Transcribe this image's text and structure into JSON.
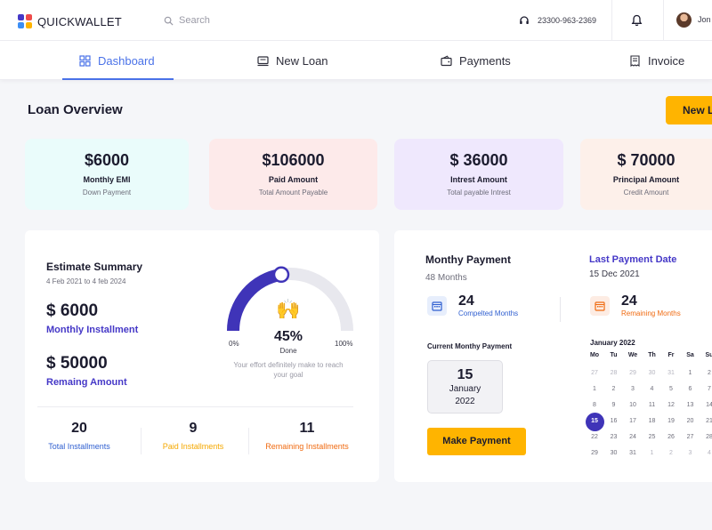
{
  "header": {
    "brand": "QUICKWALLET",
    "search_placeholder": "Search",
    "phone": "23300-963-2369",
    "user_name": "Jon"
  },
  "nav": {
    "tabs": [
      {
        "label": "Dashboard",
        "icon": "grid-icon",
        "active": true
      },
      {
        "label": "New Loan",
        "icon": "laptop-icon",
        "active": false
      },
      {
        "label": "Payments",
        "icon": "wallet-icon",
        "active": false
      },
      {
        "label": "Invoice",
        "icon": "receipt-icon",
        "active": false
      }
    ]
  },
  "main": {
    "title": "Loan Overview",
    "new_loan_button": "New Loan"
  },
  "stats": [
    {
      "value": "$6000",
      "title": "Monthly EMI",
      "sub": "Down Payment",
      "color": "#eafcfb"
    },
    {
      "value": "$106000",
      "title": "Paid Amount",
      "sub": "Total  Amount Payable",
      "color": "#fdeaea"
    },
    {
      "value": "$ 36000",
      "title": "Intrest Amount",
      "sub": "Total payable Intrest",
      "color": "#efe8fd"
    },
    {
      "value": "$ 70000",
      "title": "Principal Amount",
      "sub": "Credit Amount",
      "color": "#fdf0ea"
    }
  ],
  "estimate": {
    "title": "Estimate Summary",
    "dates": "4 Feb 2021 to 4 feb 2024",
    "installment_value": "$ 6000",
    "installment_label": "Monthly Installment",
    "remaining_value": "$ 50000",
    "remaining_label": "Remaing Amount",
    "gauge": {
      "percent": 45,
      "percent_text": "45%",
      "done_label": "Done",
      "min_label": "0%",
      "max_label": "100%",
      "emoji": "🙌",
      "note": "Your effort definitely make to reach your goal"
    },
    "installments": [
      {
        "value": "20",
        "label": "Total Installments",
        "color": "#2f5fd0"
      },
      {
        "value": "9",
        "label": "Paid Installments",
        "color": "#f5a800"
      },
      {
        "value": "11",
        "label": "Remaining Installments",
        "color": "#f06a10"
      }
    ]
  },
  "monthly": {
    "title": "Monthy Payment",
    "months": "48 Months",
    "last_payment_title": "Last Payment Date",
    "last_payment_date": "15 Dec 2021",
    "completed": {
      "value": "24",
      "label": "Compelted Months",
      "color": "#2f5fd0"
    },
    "remaining": {
      "value": "24",
      "label": "Remaining Months",
      "color": "#f06a10"
    },
    "current_title": "Current Monthy Payment",
    "current_day": "15",
    "current_month": "January",
    "current_year": "2022",
    "make_payment": "Make Payment"
  },
  "calendar": {
    "title": "January 2022",
    "headers": [
      "Mo",
      "Tu",
      "We",
      "Th",
      "Fr",
      "Sa",
      "Su"
    ],
    "weeks": [
      [
        "27",
        "28",
        "29",
        "30",
        "31",
        "1",
        "2"
      ],
      [
        "1",
        "2",
        "3",
        "4",
        "5",
        "6",
        "7"
      ],
      [
        "8",
        "9",
        "10",
        "11",
        "12",
        "13",
        "14"
      ],
      [
        "15",
        "16",
        "17",
        "18",
        "19",
        "20",
        "21"
      ],
      [
        "22",
        "23",
        "24",
        "25",
        "26",
        "27",
        "28"
      ],
      [
        "29",
        "30",
        "31",
        "1",
        "2",
        "3",
        "4"
      ]
    ],
    "selected": "15"
  }
}
